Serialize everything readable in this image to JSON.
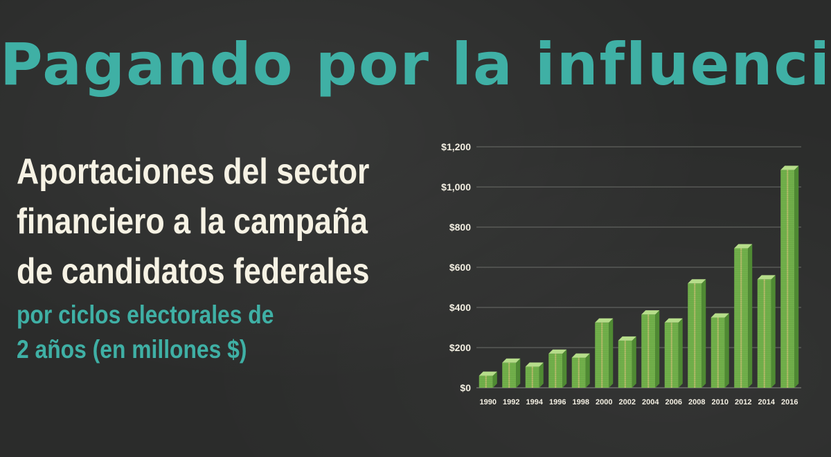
{
  "title": "Pagando por la influencia",
  "subtitle_lines": [
    "Aportaciones del sector",
    "financiero a la campaña",
    "de candidatos federales"
  ],
  "note_lines": [
    "por ciclos electorales de",
    "2 años (en millones $)"
  ],
  "colors": {
    "background": "#2b2c2b",
    "title": "#3fb0a5",
    "subtitle": "#f6f2e4",
    "bar": "#72b04c",
    "bar_dark": "#4f8a33",
    "bar_top": "#b6dd8a"
  },
  "chart_data": {
    "type": "bar",
    "categories": [
      "1990",
      "1992",
      "1994",
      "1996",
      "1998",
      "2000",
      "2002",
      "2004",
      "2006",
      "2008",
      "2010",
      "2012",
      "2014",
      "2016"
    ],
    "values": [
      60,
      125,
      105,
      170,
      150,
      325,
      235,
      365,
      325,
      520,
      350,
      695,
      540,
      1085
    ],
    "ylim": [
      0,
      1200
    ],
    "yticks": [
      0,
      200,
      400,
      600,
      800,
      1000,
      1200
    ],
    "ytick_labels": [
      "$0",
      "$200",
      "$400",
      "$600",
      "$800",
      "$1,000",
      "$1,200"
    ],
    "grid": true,
    "bar_style": "stacked-banknotes"
  }
}
